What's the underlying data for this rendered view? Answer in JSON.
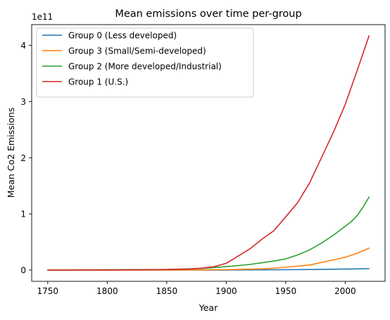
{
  "chart_data": {
    "type": "line",
    "title": "Mean emissions over time per-group",
    "xlabel": "Year",
    "ylabel": "Mean Co2 Emissions",
    "y_scale_label": "1e11",
    "xlim": [
      1736.5,
      2033.5
    ],
    "ylim": [
      -0.2,
      4.37
    ],
    "x_ticks": [
      1750,
      1800,
      1850,
      1900,
      1950,
      2000
    ],
    "y_ticks": [
      0,
      1,
      2,
      3,
      4
    ],
    "grid": false,
    "legend_position": "top-left",
    "series": [
      {
        "name": "Group 0 (Less developed)",
        "color": "#1f77b4",
        "points": [
          [
            1750,
            0
          ],
          [
            1850,
            0
          ],
          [
            1900,
            0.002
          ],
          [
            1950,
            0.006
          ],
          [
            1980,
            0.012
          ],
          [
            2000,
            0.018
          ],
          [
            2020,
            0.025
          ]
        ]
      },
      {
        "name": "Group 3 (Small/Semi-developed)",
        "color": "#ff7f0e",
        "points": [
          [
            1750,
            0
          ],
          [
            1850,
            0.002
          ],
          [
            1900,
            0.008
          ],
          [
            1930,
            0.02
          ],
          [
            1950,
            0.05
          ],
          [
            1970,
            0.09
          ],
          [
            1990,
            0.18
          ],
          [
            2000,
            0.23
          ],
          [
            2010,
            0.3
          ],
          [
            2020,
            0.39
          ]
        ]
      },
      {
        "name": "Group 2 (More developed/Industrial)",
        "color": "#2ca02c",
        "points": [
          [
            1750,
            0
          ],
          [
            1850,
            0.01
          ],
          [
            1880,
            0.03
          ],
          [
            1900,
            0.06
          ],
          [
            1920,
            0.1
          ],
          [
            1940,
            0.16
          ],
          [
            1950,
            0.2
          ],
          [
            1960,
            0.27
          ],
          [
            1970,
            0.36
          ],
          [
            1980,
            0.48
          ],
          [
            1990,
            0.62
          ],
          [
            2000,
            0.78
          ],
          [
            2005,
            0.86
          ],
          [
            2010,
            0.97
          ],
          [
            2015,
            1.12
          ],
          [
            2020,
            1.3
          ]
        ]
      },
      {
        "name": "Group 1 (U.S.)",
        "color": "#d62728",
        "points": [
          [
            1750,
            0
          ],
          [
            1800,
            0.001
          ],
          [
            1850,
            0.01
          ],
          [
            1870,
            0.02
          ],
          [
            1880,
            0.035
          ],
          [
            1890,
            0.06
          ],
          [
            1900,
            0.12
          ],
          [
            1910,
            0.25
          ],
          [
            1920,
            0.38
          ],
          [
            1930,
            0.55
          ],
          [
            1940,
            0.7
          ],
          [
            1950,
            0.95
          ],
          [
            1960,
            1.2
          ],
          [
            1970,
            1.55
          ],
          [
            1980,
            2.0
          ],
          [
            1990,
            2.45
          ],
          [
            2000,
            2.95
          ],
          [
            2010,
            3.55
          ],
          [
            2020,
            4.17
          ]
        ]
      }
    ]
  }
}
